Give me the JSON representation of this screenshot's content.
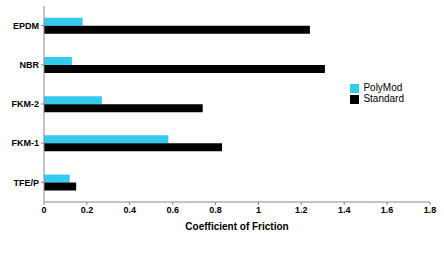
{
  "chart_data": {
    "type": "bar",
    "orientation": "horizontal",
    "categories": [
      "EPDM",
      "NBR",
      "FKM-2",
      "FKM-1",
      "TFE/P"
    ],
    "series": [
      {
        "name": "PolyMod",
        "color": "#33ccee",
        "values": [
          0.18,
          0.13,
          0.27,
          0.58,
          0.12
        ]
      },
      {
        "name": "Standard",
        "color": "#000000",
        "values": [
          1.24,
          1.31,
          0.74,
          0.83,
          0.15
        ]
      }
    ],
    "x_label": "Coefficient of Friction",
    "xlim": [
      0,
      1.8
    ],
    "xticks": [
      0,
      0.2,
      0.4,
      0.6,
      0.8,
      1,
      1.2,
      1.4,
      1.6,
      1.8
    ],
    "grid": false,
    "legend": "right"
  }
}
